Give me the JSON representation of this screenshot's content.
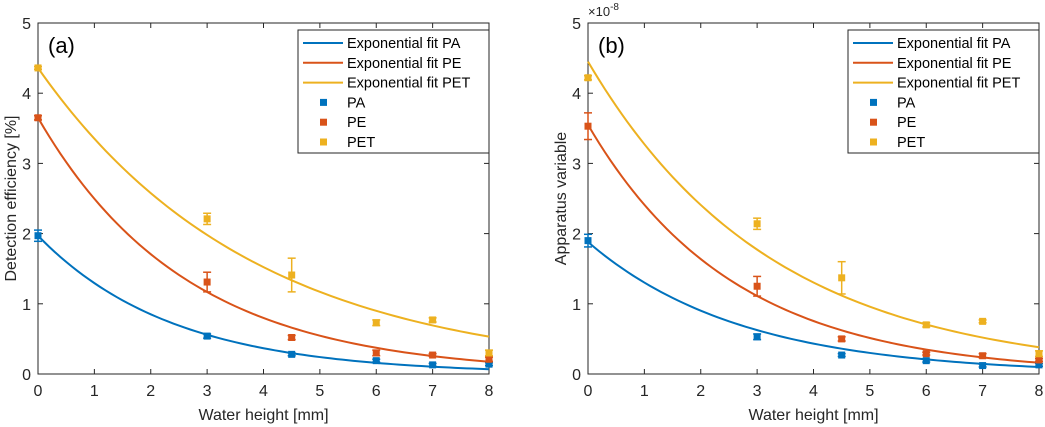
{
  "chart_data": [
    {
      "type": "scatter",
      "panel_label": "(a)",
      "xlabel": "Water height [mm]",
      "ylabel": "Detection efficiency [%]",
      "xlim": [
        0,
        8
      ],
      "ylim": [
        0,
        5
      ],
      "xticks": [
        0,
        1,
        2,
        3,
        4,
        5,
        6,
        7,
        8
      ],
      "yticks": [
        0,
        1,
        2,
        3,
        4,
        5
      ],
      "y_exponent": "",
      "grid": false,
      "legend_position": "top-right",
      "legend": [
        "Exponential fit PA",
        "Exponential fit PE",
        "Exponential fit PET",
        "PA",
        "PE",
        "PET"
      ],
      "x": [
        0,
        3,
        4.5,
        6,
        7,
        8
      ],
      "series": [
        {
          "name": "PA",
          "color": "#0072BD",
          "values": [
            1.97,
            0.54,
            0.28,
            0.19,
            0.13,
            0.14
          ],
          "errors": [
            0.08,
            0.03,
            0.02,
            0.02,
            0.02,
            0.02
          ]
        },
        {
          "name": "PE",
          "color": "#D95319",
          "values": [
            3.65,
            1.31,
            0.52,
            0.3,
            0.27,
            0.21
          ],
          "errors": [
            0.03,
            0.14,
            0.03,
            0.04,
            0.02,
            0.03
          ]
        },
        {
          "name": "PET",
          "color": "#EDB120",
          "values": [
            4.36,
            2.21,
            1.41,
            0.73,
            0.77,
            0.3
          ],
          "errors": [
            0.02,
            0.08,
            0.24,
            0.04,
            0.03,
            0.04
          ]
        }
      ],
      "fits": [
        {
          "name": "Exponential fit PA",
          "color": "#0072BD",
          "a": 1.97,
          "k": 0.42
        },
        {
          "name": "Exponential fit PE",
          "color": "#D95319",
          "a": 3.65,
          "k": 0.38
        },
        {
          "name": "Exponential fit PET",
          "color": "#EDB120",
          "a": 4.36,
          "k": 0.263
        }
      ]
    },
    {
      "type": "scatter",
      "panel_label": "(b)",
      "xlabel": "Water height [mm]",
      "ylabel": "Apparatus variable",
      "xlim": [
        0,
        8
      ],
      "ylim": [
        0,
        5
      ],
      "xticks": [
        0,
        1,
        2,
        3,
        4,
        5,
        6,
        7,
        8
      ],
      "yticks": [
        0,
        1,
        2,
        3,
        4,
        5
      ],
      "y_exponent": "×10-8",
      "y_exponent_base": "×10",
      "y_exponent_power": "-8",
      "grid": false,
      "legend_position": "top-right",
      "legend": [
        "Exponential fit PA",
        "Exponential fit PE",
        "Exponential fit PET",
        "PA",
        "PE",
        "PET"
      ],
      "x": [
        0,
        3,
        4.5,
        6,
        7,
        8
      ],
      "series": [
        {
          "name": "PA",
          "color": "#0072BD",
          "values": [
            1.9,
            0.53,
            0.27,
            0.19,
            0.12,
            0.13
          ],
          "errors": [
            0.09,
            0.04,
            0.02,
            0.02,
            0.02,
            0.02
          ]
        },
        {
          "name": "PE",
          "color": "#D95319",
          "values": [
            3.53,
            1.25,
            0.5,
            0.29,
            0.26,
            0.2
          ],
          "errors": [
            0.19,
            0.14,
            0.03,
            0.02,
            0.03,
            0.02
          ]
        },
        {
          "name": "PET",
          "color": "#EDB120",
          "values": [
            4.22,
            2.14,
            1.37,
            0.7,
            0.75,
            0.29
          ],
          "errors": [
            0.03,
            0.08,
            0.23,
            0.03,
            0.02,
            0.04
          ]
        }
      ],
      "fits": [
        {
          "name": "Exponential fit PA",
          "color": "#0072BD",
          "a": 1.88,
          "k": 0.367
        },
        {
          "name": "Exponential fit PE",
          "color": "#D95319",
          "a": 3.55,
          "k": 0.387
        },
        {
          "name": "Exponential fit PET",
          "color": "#EDB120",
          "a": 4.45,
          "k": 0.307
        }
      ]
    }
  ]
}
